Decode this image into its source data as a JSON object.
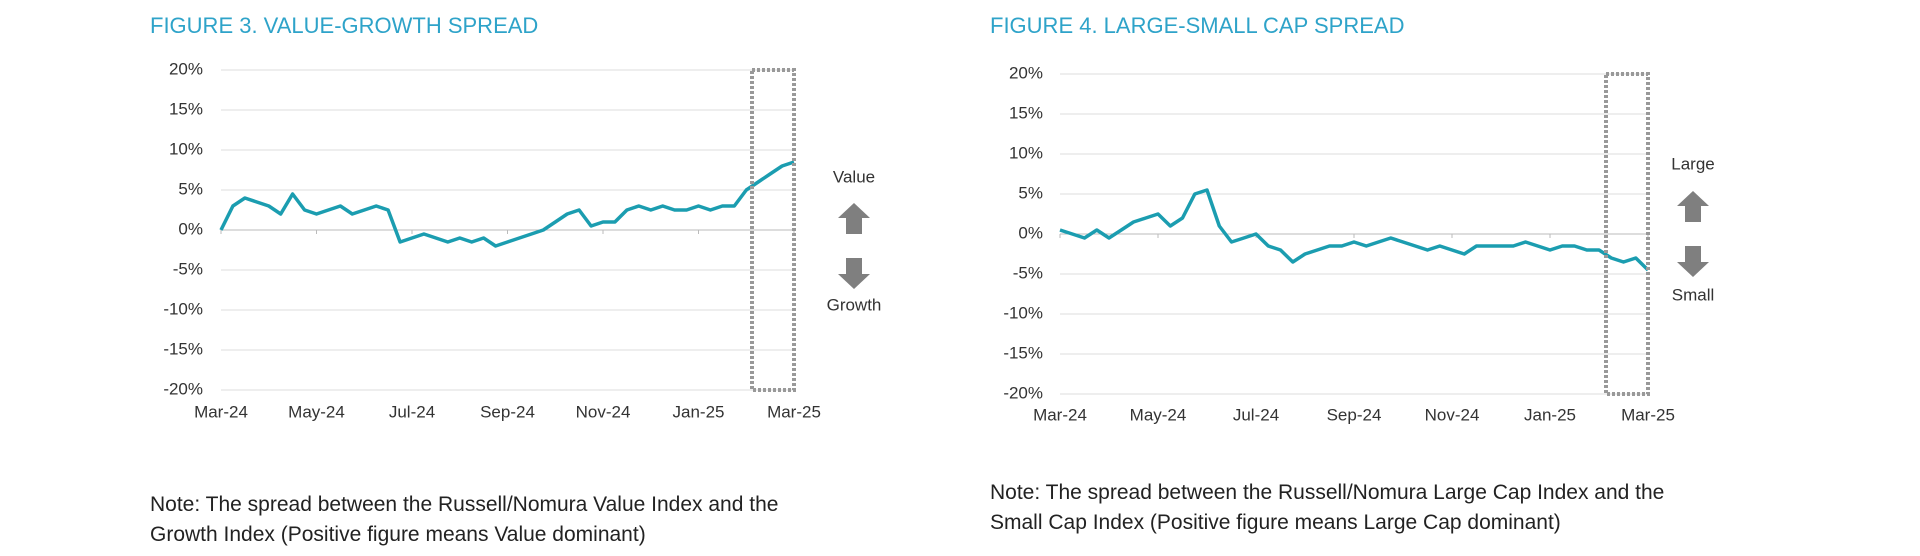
{
  "chart_data": [
    {
      "type": "line",
      "title": "FIGURE 3. VALUE-GROWTH SPREAD",
      "categories": [
        "Mar-24",
        null,
        null,
        null,
        null,
        null,
        null,
        null,
        "May-24",
        null,
        null,
        null,
        null,
        null,
        null,
        null,
        "Jul-24",
        null,
        null,
        null,
        null,
        null,
        null,
        null,
        "Sep-24",
        null,
        null,
        null,
        null,
        null,
        null,
        null,
        "Nov-24",
        null,
        null,
        null,
        null,
        null,
        null,
        null,
        "Jan-25",
        null,
        null,
        null,
        null,
        null,
        null,
        null,
        "Mar-25"
      ],
      "values": [
        0,
        3,
        4,
        3.5,
        3,
        2,
        4.5,
        2.5,
        2,
        2.5,
        3,
        2,
        2.5,
        3,
        2.5,
        -1.5,
        -1,
        -0.5,
        -1,
        -1.5,
        -1,
        -1.5,
        -1,
        -2,
        -1.5,
        -1,
        -0.5,
        0,
        1,
        2,
        2.5,
        0.5,
        1,
        1,
        2.5,
        3,
        2.5,
        3,
        2.5,
        2.5,
        3,
        2.5,
        3,
        3,
        5,
        6,
        7,
        8,
        8.5
      ],
      "color": "#1b9db0",
      "ylim": [
        -20,
        20
      ],
      "yticks": [
        {
          "value": -20,
          "label": "-20%"
        },
        {
          "value": -15,
          "label": "-15%"
        },
        {
          "value": -10,
          "label": "-10%"
        },
        {
          "value": -5,
          "label": "-5%"
        },
        {
          "value": 0,
          "label": "0%"
        },
        {
          "value": 5,
          "label": "5%"
        },
        {
          "value": 10,
          "label": "10%"
        },
        {
          "value": 15,
          "label": "15%"
        },
        {
          "value": 20,
          "label": "20%"
        }
      ],
      "grid": true,
      "annotations": [
        "Value",
        "Growth"
      ],
      "note": "Note: The spread between the Russell/Nomura Value Index and the Growth Index (Positive figure means Value dominant)"
    },
    {
      "type": "line",
      "title": "FIGURE 4. LARGE-SMALL CAP SPREAD",
      "categories": [
        "Mar-24",
        null,
        null,
        null,
        null,
        null,
        null,
        null,
        "May-24",
        null,
        null,
        null,
        null,
        null,
        null,
        null,
        "Jul-24",
        null,
        null,
        null,
        null,
        null,
        null,
        null,
        "Sep-24",
        null,
        null,
        null,
        null,
        null,
        null,
        null,
        "Nov-24",
        null,
        null,
        null,
        null,
        null,
        null,
        null,
        "Jan-25",
        null,
        null,
        null,
        null,
        null,
        null,
        null,
        "Mar-25"
      ],
      "values": [
        0.5,
        0,
        -0.5,
        0.5,
        -0.5,
        0.5,
        1.5,
        2,
        2.5,
        1,
        2,
        5,
        5.5,
        1,
        -1,
        -0.5,
        0,
        -1.5,
        -2,
        -3.5,
        -2.5,
        -2,
        -1.5,
        -1.5,
        -1,
        -1.5,
        -1,
        -0.5,
        -1,
        -1.5,
        -2,
        -1.5,
        -2,
        -2.5,
        -1.5,
        -1.5,
        -1.5,
        -1.5,
        -1,
        -1.5,
        -2,
        -1.5,
        -1.5,
        -2,
        -2,
        -3,
        -3.5,
        -3,
        -4.5
      ],
      "color": "#1b9db0",
      "ylim": [
        -20,
        20
      ],
      "yticks": [
        {
          "value": -20,
          "label": "-20%"
        },
        {
          "value": -15,
          "label": "-15%"
        },
        {
          "value": -10,
          "label": "-10%"
        },
        {
          "value": -5,
          "label": "-5%"
        },
        {
          "value": 0,
          "label": "0%"
        },
        {
          "value": 5,
          "label": "5%"
        },
        {
          "value": 10,
          "label": "10%"
        },
        {
          "value": 15,
          "label": "15%"
        },
        {
          "value": 20,
          "label": "20%"
        }
      ],
      "grid": true,
      "annotations": [
        "Large",
        "Small"
      ],
      "note": "Note: The spread between the Russell/Nomura Large Cap Index and the Small Cap Index (Positive figure means Large Cap dominant)"
    }
  ]
}
